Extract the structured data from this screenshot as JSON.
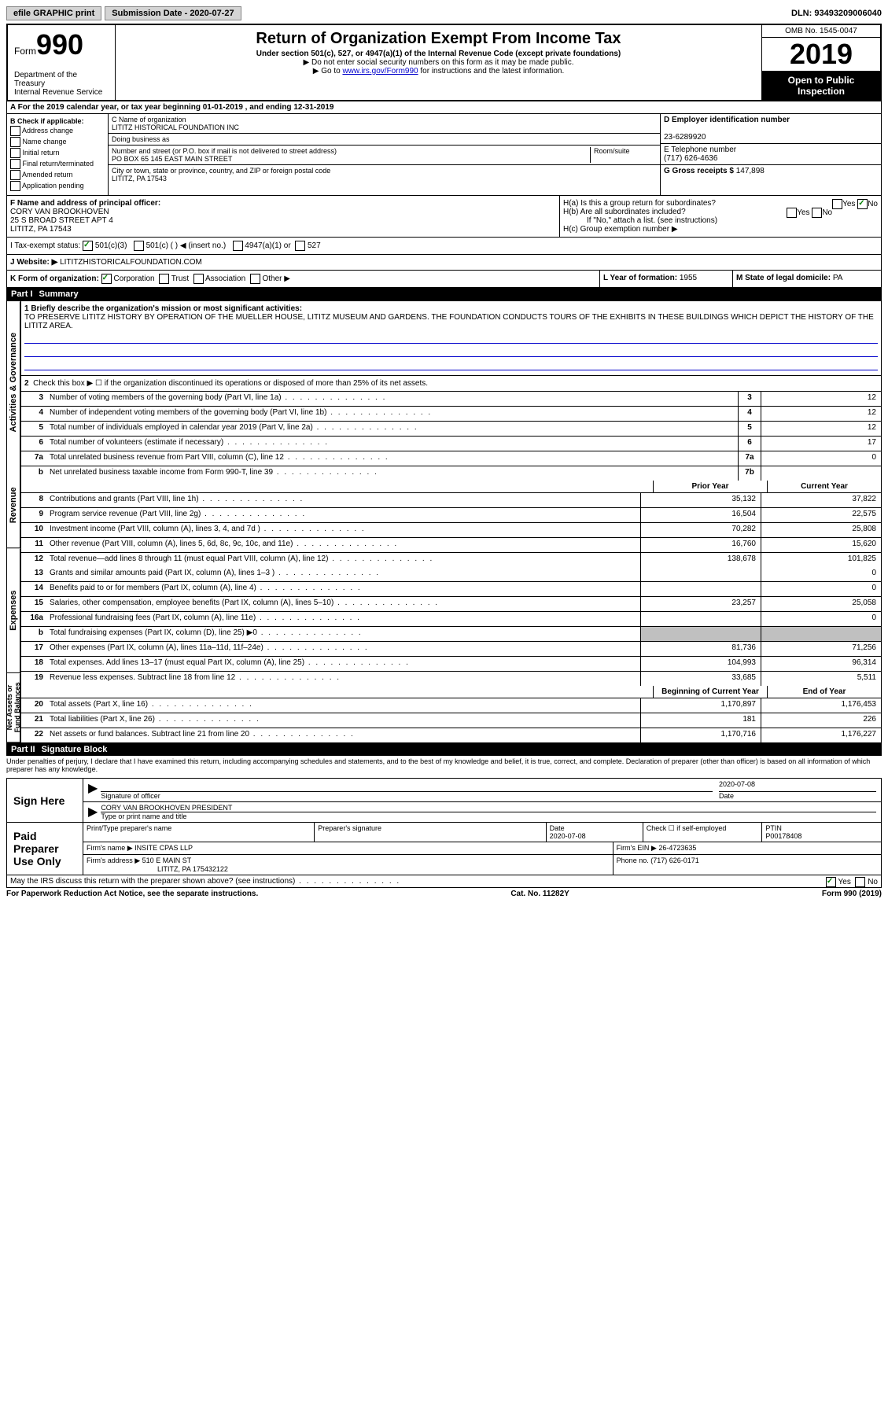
{
  "topbar": {
    "efile": "efile GRAPHIC print",
    "submission": "Submission Date - 2020-07-27",
    "dln": "DLN: 93493209006040"
  },
  "header": {
    "form_word": "Form",
    "form_num": "990",
    "dept": "Department of the Treasury\nInternal Revenue Service",
    "title1": "Return of Organization Exempt From Income Tax",
    "sub": "Under section 501(c), 527, or 4947(a)(1) of the Internal Revenue Code (except private foundations)",
    "note1": "▶ Do not enter social security numbers on this form as it may be made public.",
    "note2_pre": "▶ Go to ",
    "note2_link": "www.irs.gov/Form990",
    "note2_post": " for instructions and the latest information.",
    "omb": "OMB No. 1545-0047",
    "year": "2019",
    "open": "Open to Public Inspection"
  },
  "row_a": "A For the 2019 calendar year, or tax year beginning 01-01-2019   , and ending 12-31-2019",
  "section_b": {
    "title": "B Check if applicable:",
    "opts": [
      "Address change",
      "Name change",
      "Initial return",
      "Final return/terminated",
      "Amended return",
      "Application pending"
    ]
  },
  "section_c": {
    "name_label": "C Name of organization",
    "name": "LITITZ HISTORICAL FOUNDATION INC",
    "dba_label": "Doing business as",
    "addr_label": "Number and street (or P.O. box if mail is not delivered to street address)",
    "room_label": "Room/suite",
    "addr": "PO BOX 65 145 EAST MAIN STREET",
    "city_label": "City or town, state or province, country, and ZIP or foreign postal code",
    "city": "LITITZ, PA  17543"
  },
  "section_d": {
    "ein_label": "D Employer identification number",
    "ein": "23-6289920",
    "tel_label": "E Telephone number",
    "tel": "(717) 626-4636",
    "gross_label": "G Gross receipts $",
    "gross": "147,898"
  },
  "section_f": {
    "label": "F  Name and address of principal officer:",
    "name": "CORY VAN BROOKHOVEN",
    "addr1": "25 S BROAD STREET APT 4",
    "addr2": "LITITZ, PA  17543"
  },
  "section_h": {
    "ha": "H(a)  Is this a group return for subordinates?",
    "hb": "H(b)  Are all subordinates included?",
    "hb_note": "If \"No,\" attach a list. (see instructions)",
    "hc": "H(c)  Group exemption number ▶"
  },
  "tax_exempt": {
    "label": "I  Tax-exempt status:",
    "opt1": "501(c)(3)",
    "opt2": "501(c) (  ) ◀ (insert no.)",
    "opt3": "4947(a)(1) or",
    "opt4": "527"
  },
  "website": {
    "label": "J  Website: ▶",
    "value": "LITITZHISTORICALFOUNDATION.COM"
  },
  "row_k": {
    "label": "K Form of organization:",
    "opts": [
      "Corporation",
      "Trust",
      "Association",
      "Other ▶"
    ],
    "l_label": "L Year of formation:",
    "l_val": "1955",
    "m_label": "M State of legal domicile:",
    "m_val": "PA"
  },
  "part1": {
    "header": "Part I",
    "title": "Summary",
    "q1_label": "1  Briefly describe the organization's mission or most significant activities:",
    "q1_text": "TO PRESERVE LITITZ HISTORY BY OPERATION OF THE MUELLER HOUSE, LITITZ MUSEUM AND GARDENS. THE FOUNDATION CONDUCTS TOURS OF THE EXHIBITS IN THESE BUILDINGS WHICH DEPICT THE HISTORY OF THE LITITZ AREA.",
    "q2": "Check this box ▶ ☐  if the organization discontinued its operations or disposed of more than 25% of its net assets.",
    "side_ag": "Activities & Governance",
    "side_rev": "Revenue",
    "side_exp": "Expenses",
    "side_net": "Net Assets or Fund Balances",
    "prior_year": "Prior Year",
    "current_year": "Current Year",
    "begin_year": "Beginning of Current Year",
    "end_year": "End of Year",
    "lines_ag": [
      {
        "n": "3",
        "t": "Number of voting members of the governing body (Part VI, line 1a)",
        "box": "3",
        "v": "12"
      },
      {
        "n": "4",
        "t": "Number of independent voting members of the governing body (Part VI, line 1b)",
        "box": "4",
        "v": "12"
      },
      {
        "n": "5",
        "t": "Total number of individuals employed in calendar year 2019 (Part V, line 2a)",
        "box": "5",
        "v": "12"
      },
      {
        "n": "6",
        "t": "Total number of volunteers (estimate if necessary)",
        "box": "6",
        "v": "17"
      },
      {
        "n": "7a",
        "t": "Total unrelated business revenue from Part VIII, column (C), line 12",
        "box": "7a",
        "v": "0"
      },
      {
        "n": "b",
        "t": "Net unrelated business taxable income from Form 990-T, line 39",
        "box": "7b",
        "v": ""
      }
    ],
    "lines_rev": [
      {
        "n": "8",
        "t": "Contributions and grants (Part VIII, line 1h)",
        "py": "35,132",
        "cy": "37,822"
      },
      {
        "n": "9",
        "t": "Program service revenue (Part VIII, line 2g)",
        "py": "16,504",
        "cy": "22,575"
      },
      {
        "n": "10",
        "t": "Investment income (Part VIII, column (A), lines 3, 4, and 7d )",
        "py": "70,282",
        "cy": "25,808"
      },
      {
        "n": "11",
        "t": "Other revenue (Part VIII, column (A), lines 5, 6d, 8c, 9c, 10c, and 11e)",
        "py": "16,760",
        "cy": "15,620"
      },
      {
        "n": "12",
        "t": "Total revenue—add lines 8 through 11 (must equal Part VIII, column (A), line 12)",
        "py": "138,678",
        "cy": "101,825"
      }
    ],
    "lines_exp": [
      {
        "n": "13",
        "t": "Grants and similar amounts paid (Part IX, column (A), lines 1–3 )",
        "py": "",
        "cy": "0"
      },
      {
        "n": "14",
        "t": "Benefits paid to or for members (Part IX, column (A), line 4)",
        "py": "",
        "cy": "0"
      },
      {
        "n": "15",
        "t": "Salaries, other compensation, employee benefits (Part IX, column (A), lines 5–10)",
        "py": "23,257",
        "cy": "25,058"
      },
      {
        "n": "16a",
        "t": "Professional fundraising fees (Part IX, column (A), line 11e)",
        "py": "",
        "cy": "0"
      },
      {
        "n": "b",
        "t": "Total fundraising expenses (Part IX, column (D), line 25) ▶0",
        "py": "shaded",
        "cy": "shaded"
      },
      {
        "n": "17",
        "t": "Other expenses (Part IX, column (A), lines 11a–11d, 11f–24e)",
        "py": "81,736",
        "cy": "71,256"
      },
      {
        "n": "18",
        "t": "Total expenses. Add lines 13–17 (must equal Part IX, column (A), line 25)",
        "py": "104,993",
        "cy": "96,314"
      },
      {
        "n": "19",
        "t": "Revenue less expenses. Subtract line 18 from line 12",
        "py": "33,685",
        "cy": "5,511"
      }
    ],
    "lines_net": [
      {
        "n": "20",
        "t": "Total assets (Part X, line 16)",
        "py": "1,170,897",
        "cy": "1,176,453"
      },
      {
        "n": "21",
        "t": "Total liabilities (Part X, line 26)",
        "py": "181",
        "cy": "226"
      },
      {
        "n": "22",
        "t": "Net assets or fund balances. Subtract line 21 from line 20",
        "py": "1,170,716",
        "cy": "1,176,227"
      }
    ]
  },
  "part2": {
    "header": "Part II",
    "title": "Signature Block",
    "penalties": "Under penalties of perjury, I declare that I have examined this return, including accompanying schedules and statements, and to the best of my knowledge and belief, it is true, correct, and complete. Declaration of preparer (other than officer) is based on all information of which preparer has any knowledge.",
    "sign_here": "Sign Here",
    "sig_officer": "Signature of officer",
    "sig_date": "2020-07-08",
    "sig_date_label": "Date",
    "sig_name": "CORY VAN BROOKHOVEN  PRESIDENT",
    "sig_name_label": "Type or print name and title",
    "paid": "Paid Preparer Use Only",
    "prep_name_label": "Print/Type preparer's name",
    "prep_sig_label": "Preparer's signature",
    "prep_date": "2020-07-08",
    "prep_date_label": "Date",
    "prep_check": "Check ☐ if self-employed",
    "ptin_label": "PTIN",
    "ptin": "P00178408",
    "firm_name_label": "Firm's name    ▶",
    "firm_name": "INSITE CPAS LLP",
    "firm_ein_label": "Firm's EIN ▶",
    "firm_ein": "26-4723635",
    "firm_addr_label": "Firm's address ▶",
    "firm_addr": "510 E MAIN ST",
    "firm_city": "LITITZ, PA  175432122",
    "firm_phone_label": "Phone no.",
    "firm_phone": "(717) 626-0171",
    "may_irs": "May the IRS discuss this return with the preparer shown above? (see instructions)",
    "yes": "Yes",
    "no": "No"
  },
  "footer": {
    "paperwork": "For Paperwork Reduction Act Notice, see the separate instructions.",
    "cat": "Cat. No. 11282Y",
    "form": "Form 990 (2019)"
  }
}
